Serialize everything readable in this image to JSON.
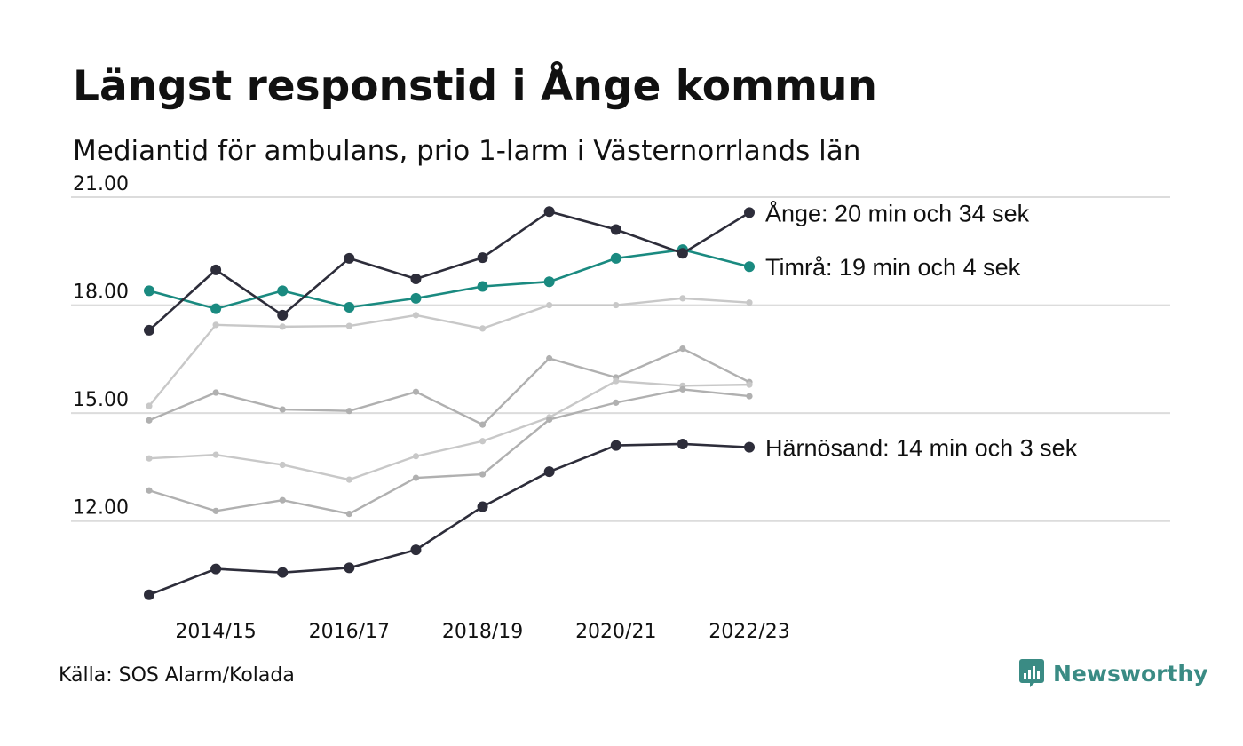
{
  "header": {
    "title": "Längst responstid i Ånge kommun",
    "subtitle": "Mediantid för ambulans, prio 1-larm i Västernorrlands län"
  },
  "footer": {
    "source": "Källa: SOS Alarm/Kolada",
    "brand": "Newsworthy",
    "brand_icon": "bar-chart-speech-bubble-icon"
  },
  "colors": {
    "dark": "#2d2d3a",
    "teal": "#1a8a80",
    "grey_light": "#c8c8c8",
    "grey_mid": "#b0b0b0",
    "grid": "#dcdcdc",
    "brand": "#3a8b84"
  },
  "chart_data": {
    "type": "line",
    "x": [
      "2013/14",
      "2014/15",
      "2015/16",
      "2016/17",
      "2017/18",
      "2018/19",
      "2019/20",
      "2020/21",
      "2021/22",
      "2022/23"
    ],
    "x_tick_labels": [
      "2014/15",
      "2016/17",
      "2018/19",
      "2020/21",
      "2022/23"
    ],
    "y_ticks": [
      "21.00",
      "18.00",
      "15.00",
      "12.00"
    ],
    "ylim": [
      9.5,
      21.0
    ],
    "grid": true,
    "series": [
      {
        "name": "",
        "style": "grey_light",
        "values": [
          15.2,
          17.45,
          17.4,
          17.42,
          17.72,
          17.35,
          18.0,
          18.0,
          18.19,
          18.07
        ]
      },
      {
        "name": "",
        "style": "grey_mid",
        "values": [
          14.8,
          15.57,
          15.1,
          15.06,
          15.59,
          14.68,
          16.52,
          15.99,
          16.79,
          15.86
        ]
      },
      {
        "name": "",
        "style": "grey_light",
        "values": [
          13.74,
          13.84,
          13.56,
          13.15,
          13.8,
          14.22,
          14.88,
          15.89,
          15.76,
          15.79
        ]
      },
      {
        "name": "",
        "style": "grey_mid",
        "values": [
          12.85,
          12.28,
          12.58,
          12.2,
          13.2,
          13.3,
          14.82,
          15.29,
          15.66,
          15.47
        ]
      },
      {
        "name": "Härnösand",
        "style": "dark",
        "end_label": "Härnösand: 14 min och 3 sek",
        "values": [
          9.95,
          10.67,
          10.57,
          10.7,
          11.2,
          12.4,
          13.37,
          14.1,
          14.14,
          14.05
        ]
      },
      {
        "name": "Timrå",
        "style": "teal",
        "end_label": "Timrå: 19 min och 4 sek",
        "values": [
          18.4,
          17.9,
          18.4,
          17.94,
          18.19,
          18.52,
          18.65,
          19.3,
          19.54,
          19.07
        ]
      },
      {
        "name": "Ånge",
        "style": "dark",
        "end_label": "Ånge: 20 min och 34 sek",
        "values": [
          17.3,
          18.98,
          17.72,
          19.3,
          18.73,
          19.32,
          20.6,
          20.1,
          19.44,
          20.57
        ]
      }
    ]
  }
}
